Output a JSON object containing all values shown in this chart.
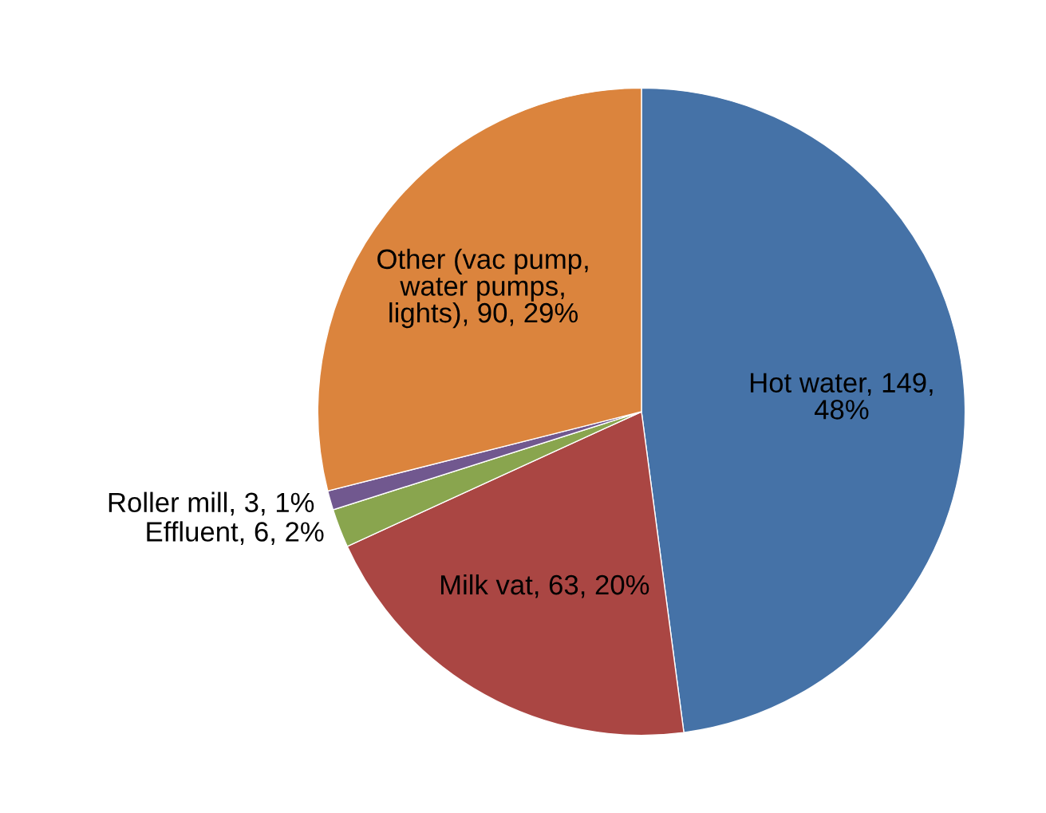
{
  "chart_data": {
    "type": "pie",
    "categories": [
      "Hot water",
      "Milk vat",
      "Effluent",
      "Roller mill",
      "Other (vac pump,\nwater pumps,\nlights)"
    ],
    "values": [
      149,
      63,
      6,
      3,
      90
    ],
    "value_labels": [
      "149,\n48%",
      "63, 20%",
      "6, 2%",
      "3, 1%",
      "90, 29%"
    ],
    "colors": [
      "#4572a7",
      "#aa4643",
      "#89a54e",
      "#71588f",
      "#db843d"
    ],
    "legend": false
  }
}
